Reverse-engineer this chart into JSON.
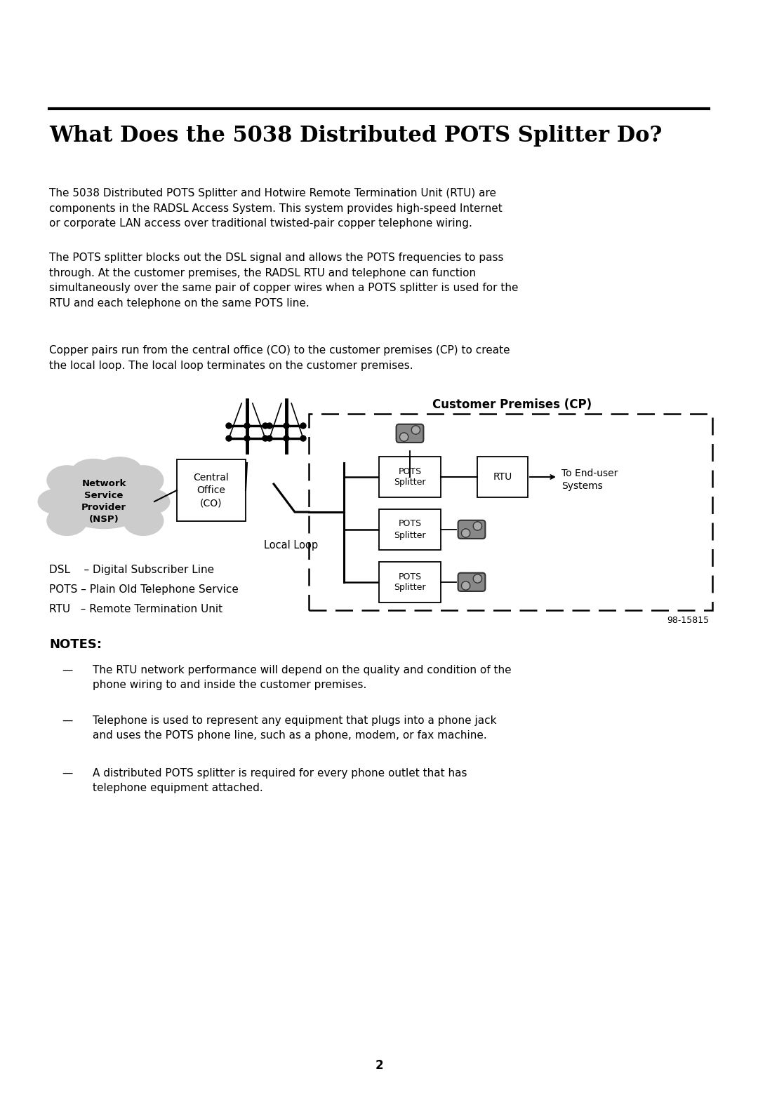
{
  "bg_color": "#ffffff",
  "title": "What Does the 5038 Distributed POTS Splitter Do?",
  "para1": "The 5038 Distributed POTS Splitter and Hotwire Remote Termination Unit (RTU) are\ncomponents in the RADSL Access System. This system provides high-speed Internet\nor corporate LAN access over traditional twisted-pair copper telephone wiring.",
  "para2": "The POTS splitter blocks out the DSL signal and allows the POTS frequencies to pass\nthrough. At the customer premises, the RADSL RTU and telephone can function\nsimultaneously over the same pair of copper wires when a POTS splitter is used for the\nRTU and each telephone on the same POTS line.",
  "para3": "Copper pairs run from the central office (CO) to the customer premises (CP) to create\nthe local loop. The local loop terminates on the customer premises.",
  "notes_title": "NOTES:",
  "note1": "The RTU network performance will depend on the quality and condition of the\nphone wiring to and inside the customer premises.",
  "note2": "Telephone is used to represent any equipment that plugs into a phone jack\nand uses the POTS phone line, such as a phone, modem, or fax machine.",
  "note3": "A distributed POTS splitter is required for every phone outlet that has\ntelephone equipment attached.",
  "legend1": "DSL    – Digital Subscriber Line",
  "legend2": "POTS – Plain Old Telephone Service",
  "legend3": "RTU   – Remote Termination Unit",
  "cp_label": "Customer Premises (CP)",
  "nsp_label": "Network\nService\nProvider\n(NSP)",
  "co_label": "Central\nOffice\n(CO)",
  "local_loop_label": "Local Loop",
  "pots_splitter": "POTS\nSplitter",
  "rtu_label": "RTU",
  "to_end_user": "To End-user\nSystems",
  "page_num": "2",
  "ref_num": "98-15815"
}
